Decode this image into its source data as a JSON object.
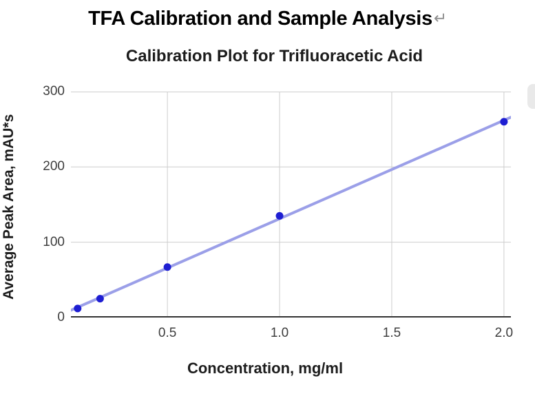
{
  "page": {
    "title": "TFA Calibration and Sample Analysis",
    "return_mark": "↵"
  },
  "chart_data": {
    "type": "scatter",
    "title": "Calibration Plot for Trifluoracetic Acid",
    "xlabel": "Concentration, mg/ml",
    "ylabel": "Average Peak Area, mAU*s",
    "points": [
      {
        "x": 0.1,
        "y": 12
      },
      {
        "x": 0.2,
        "y": 25
      },
      {
        "x": 0.5,
        "y": 67
      },
      {
        "x": 1.0,
        "y": 135
      },
      {
        "x": 2.0,
        "y": 260
      }
    ],
    "trendline": {
      "type": "linear",
      "slope": 130.7,
      "intercept": 0.5
    },
    "x_ticks": [
      0.5,
      1.0,
      1.5,
      2.0
    ],
    "x_tick_labels": [
      "0.5",
      "1.0",
      "1.5",
      "2.0"
    ],
    "y_ticks": [
      0,
      100,
      200,
      300
    ],
    "y_tick_labels": [
      "0",
      "100",
      "200",
      "300"
    ],
    "xlim": [
      0.07,
      2.031
    ],
    "ylim": [
      0,
      300
    ],
    "grid": true,
    "legend": "none",
    "colors": {
      "point": "#1e1ed2",
      "trendline": "#9b9fe8",
      "gridline": "#cdcdcd",
      "axis_line": "#333333",
      "tick_text": "#3d3d3d",
      "title_text": "#1c1c1c"
    },
    "marker": {
      "shape": "circle",
      "radius": 5.5
    },
    "trendline_width": 4
  }
}
